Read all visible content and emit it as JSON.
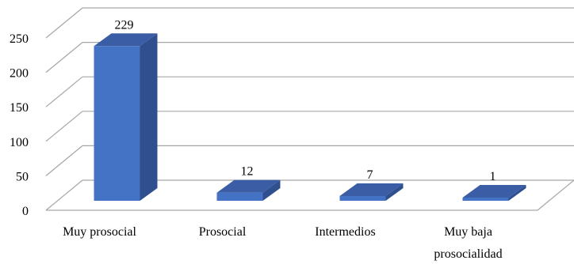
{
  "chart_data": {
    "type": "bar",
    "style": "3d-column",
    "title": "",
    "xlabel": "",
    "ylabel": "",
    "ylim": [
      0,
      250
    ],
    "yticks": [
      0,
      50,
      100,
      150,
      200,
      250
    ],
    "grid": true,
    "legend": "none",
    "categories": [
      [
        "Muy prosocial"
      ],
      [
        "Prosocial"
      ],
      [
        "Intermedios"
      ],
      [
        "Muy baja",
        "prosocialidad"
      ]
    ],
    "values": [
      229,
      12,
      7,
      1
    ],
    "data_labels": [
      "229",
      "12",
      "7",
      "1"
    ],
    "colors": {
      "bar_front": "#4472C4",
      "bar_side": "#2F4F8F",
      "bar_top": "#3A5DA5",
      "grid": "#A6A6A6"
    }
  }
}
